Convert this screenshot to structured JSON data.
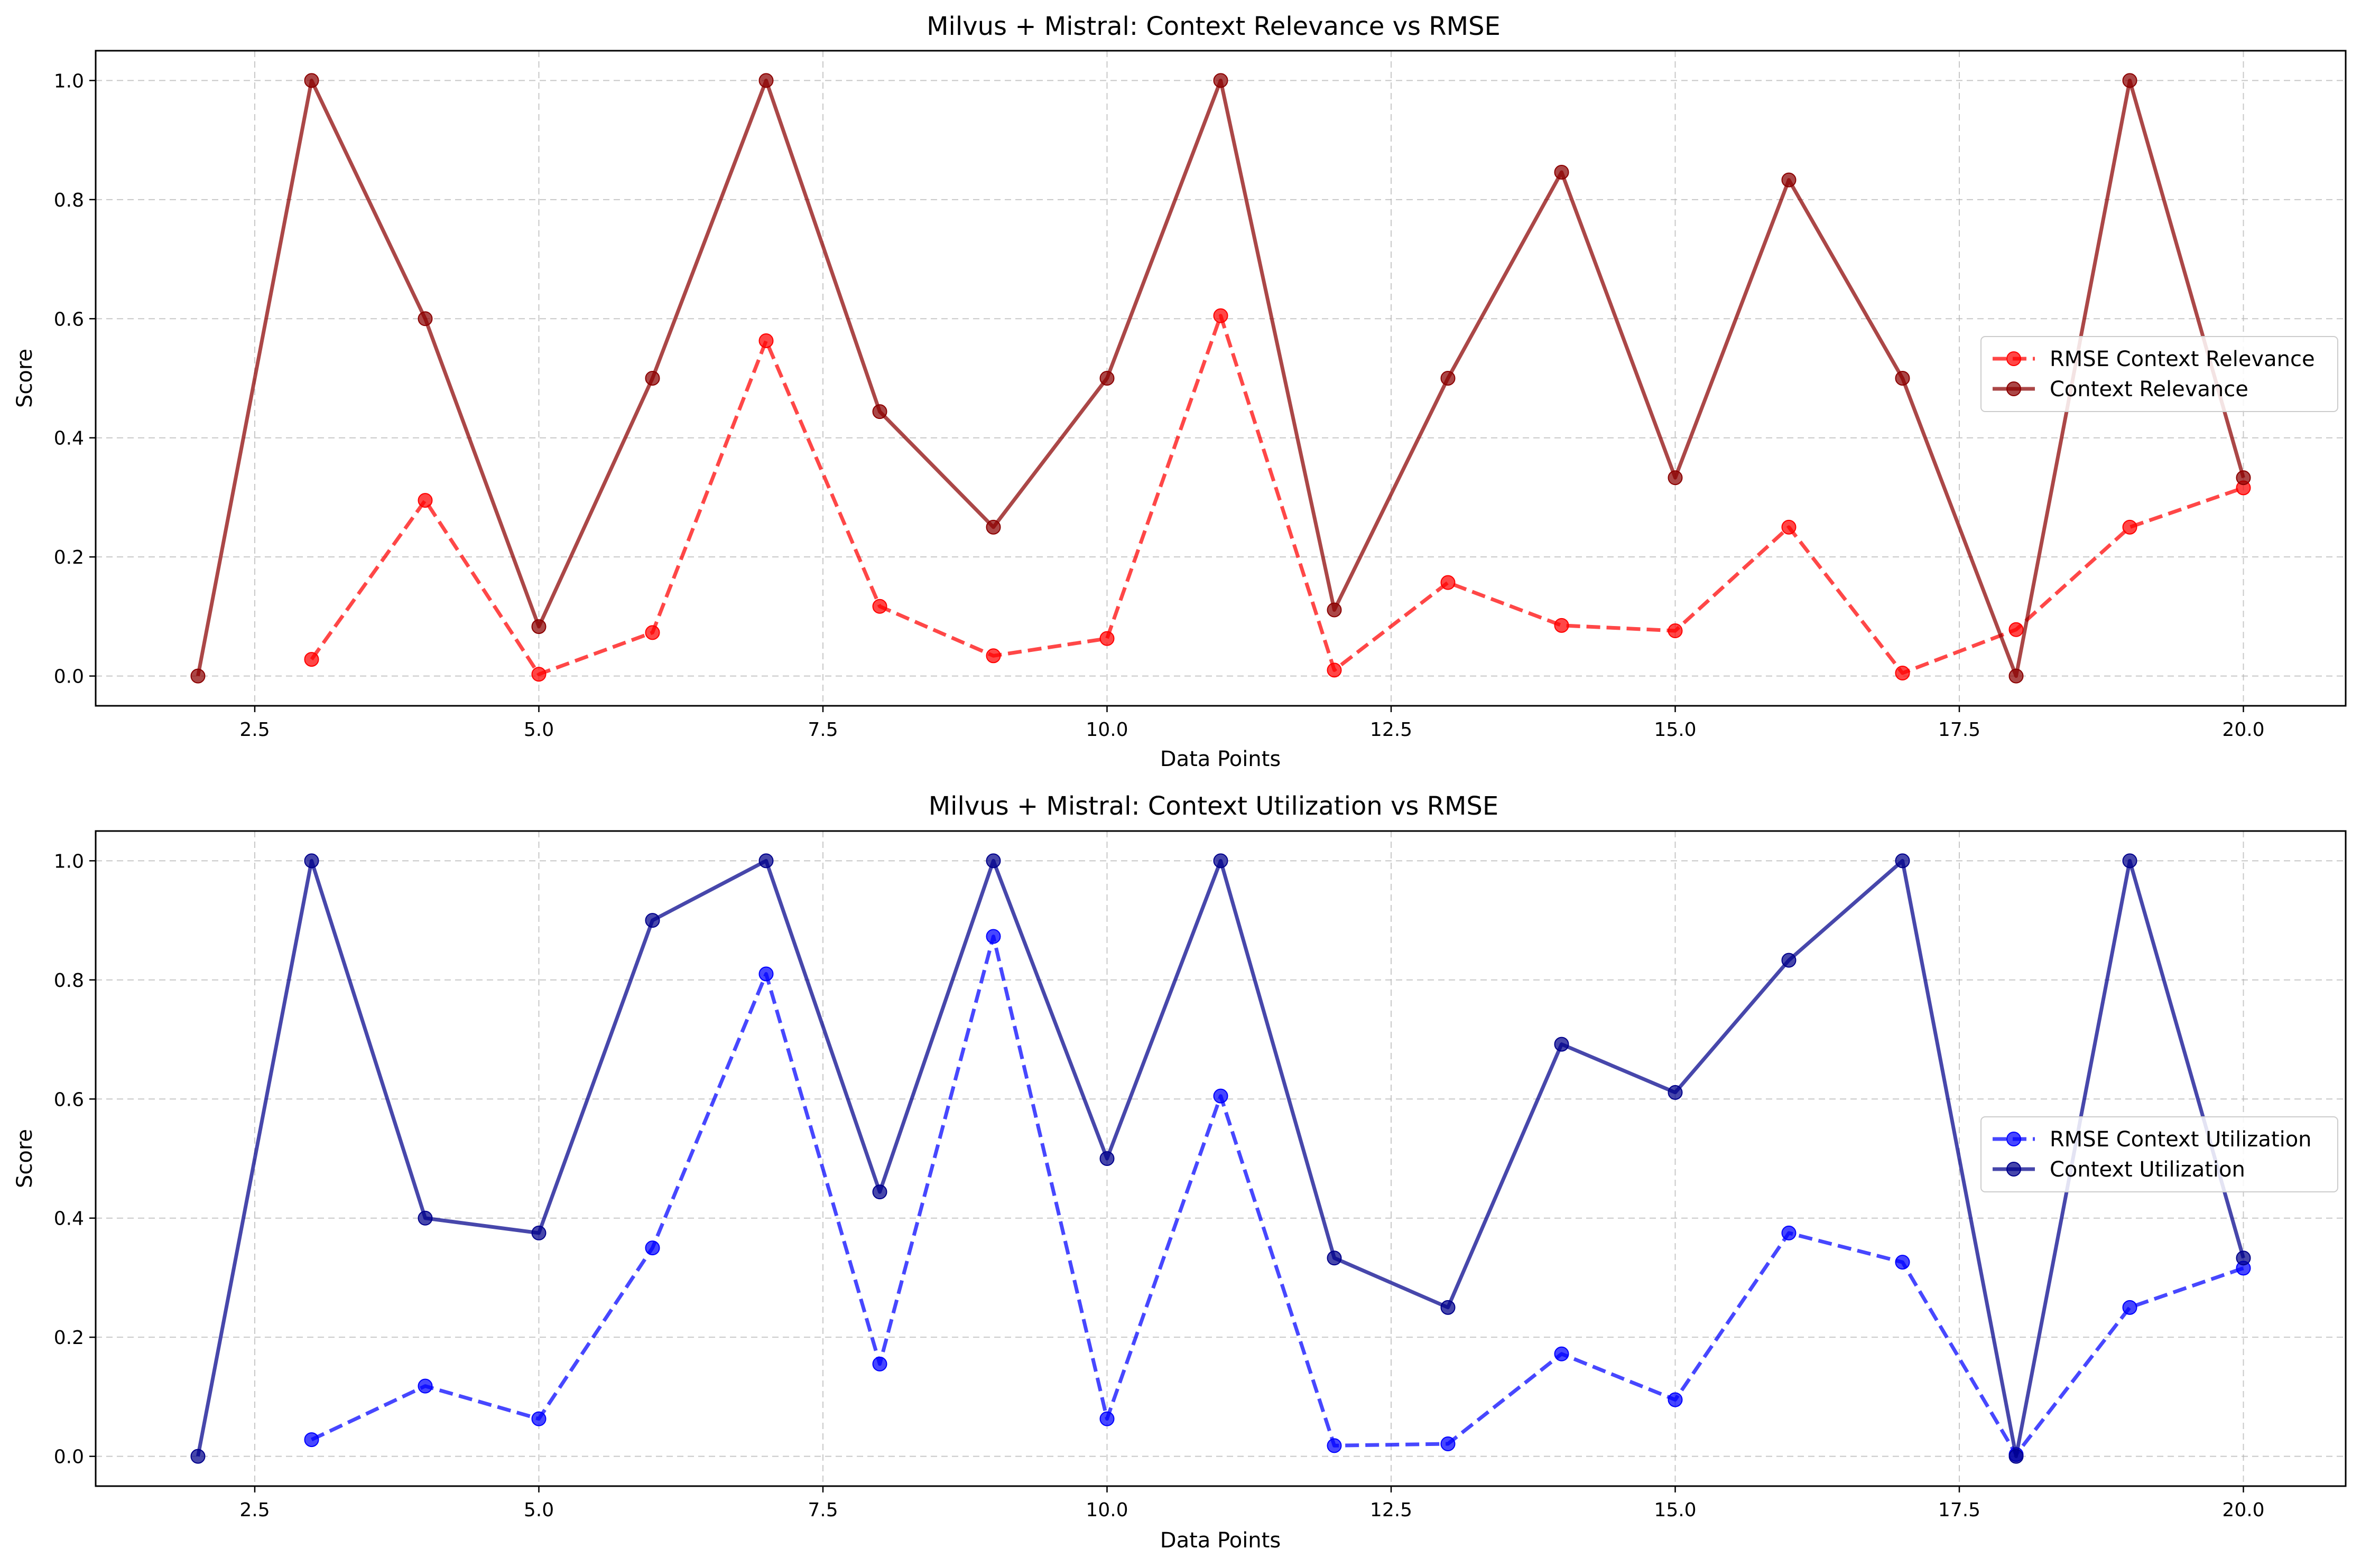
{
  "chart_data": [
    {
      "type": "line",
      "title": "Milvus + Mistral: Context Relevance vs RMSE",
      "xlabel": "Data Points",
      "ylabel": "Score",
      "xlim": [
        1.1,
        20.9
      ],
      "ylim": [
        -0.05,
        1.05
      ],
      "xticks": [
        2.5,
        5.0,
        7.5,
        10.0,
        12.5,
        15.0,
        17.5,
        20.0
      ],
      "xtick_labels": [
        "2.5",
        "5.0",
        "7.5",
        "10.0",
        "12.5",
        "15.0",
        "17.5",
        "20.0"
      ],
      "yticks": [
        0.0,
        0.2,
        0.4,
        0.6,
        0.8,
        1.0
      ],
      "ytick_labels": [
        "0.0",
        "0.2",
        "0.4",
        "0.6",
        "0.8",
        "1.0"
      ],
      "grid": true,
      "legend_position": "center-right",
      "series": [
        {
          "name": "RMSE Context Relevance",
          "color": "#ff0000",
          "style": "dashed",
          "x": [
            3,
            4,
            5,
            6,
            7,
            8,
            9,
            10,
            11,
            12,
            13,
            14,
            15,
            16,
            17,
            18,
            19,
            20
          ],
          "y": [
            0.028,
            0.295,
            0.003,
            0.073,
            0.563,
            0.117,
            0.034,
            0.063,
            0.605,
            0.01,
            0.157,
            0.085,
            0.076,
            0.25,
            0.005,
            0.078,
            0.25,
            0.316
          ]
        },
        {
          "name": "Context Relevance",
          "color": "#8b0000",
          "style": "solid",
          "x": [
            2,
            3,
            4,
            5,
            6,
            7,
            8,
            9,
            10,
            11,
            12,
            13,
            14,
            15,
            16,
            17,
            18,
            19,
            20
          ],
          "y": [
            0.0,
            1.0,
            0.6,
            0.083,
            0.5,
            1.0,
            0.444,
            0.25,
            0.5,
            1.0,
            0.111,
            0.5,
            0.846,
            0.333,
            0.833,
            0.5,
            0.0,
            1.0,
            0.333
          ]
        }
      ]
    },
    {
      "type": "line",
      "title": "Milvus + Mistral: Context Utilization vs RMSE",
      "xlabel": "Data Points",
      "ylabel": "Score",
      "xlim": [
        1.1,
        20.9
      ],
      "ylim": [
        -0.05,
        1.05
      ],
      "xticks": [
        2.5,
        5.0,
        7.5,
        10.0,
        12.5,
        15.0,
        17.5,
        20.0
      ],
      "xtick_labels": [
        "2.5",
        "5.0",
        "7.5",
        "10.0",
        "12.5",
        "15.0",
        "17.5",
        "20.0"
      ],
      "yticks": [
        0.0,
        0.2,
        0.4,
        0.6,
        0.8,
        1.0
      ],
      "ytick_labels": [
        "0.0",
        "0.2",
        "0.4",
        "0.6",
        "0.8",
        "1.0"
      ],
      "grid": true,
      "legend_position": "center-right",
      "series": [
        {
          "name": "RMSE Context Utilization",
          "color": "#0000ff",
          "style": "dashed",
          "x": [
            3,
            4,
            5,
            6,
            7,
            8,
            9,
            10,
            11,
            12,
            13,
            14,
            15,
            16,
            17,
            18,
            19,
            20
          ],
          "y": [
            0.028,
            0.118,
            0.063,
            0.35,
            0.81,
            0.155,
            0.873,
            0.063,
            0.605,
            0.018,
            0.021,
            0.172,
            0.095,
            0.375,
            0.326,
            0.003,
            0.25,
            0.316
          ]
        },
        {
          "name": "Context Utilization",
          "color": "#00008b",
          "style": "solid",
          "x": [
            2,
            3,
            4,
            5,
            6,
            7,
            8,
            9,
            10,
            11,
            12,
            13,
            14,
            15,
            16,
            17,
            18,
            19,
            20
          ],
          "y": [
            0.0,
            1.0,
            0.4,
            0.375,
            0.9,
            1.0,
            0.444,
            1.0,
            0.5,
            1.0,
            0.333,
            0.25,
            0.692,
            0.611,
            0.833,
            1.0,
            0.0,
            1.0,
            0.333
          ]
        }
      ]
    }
  ]
}
